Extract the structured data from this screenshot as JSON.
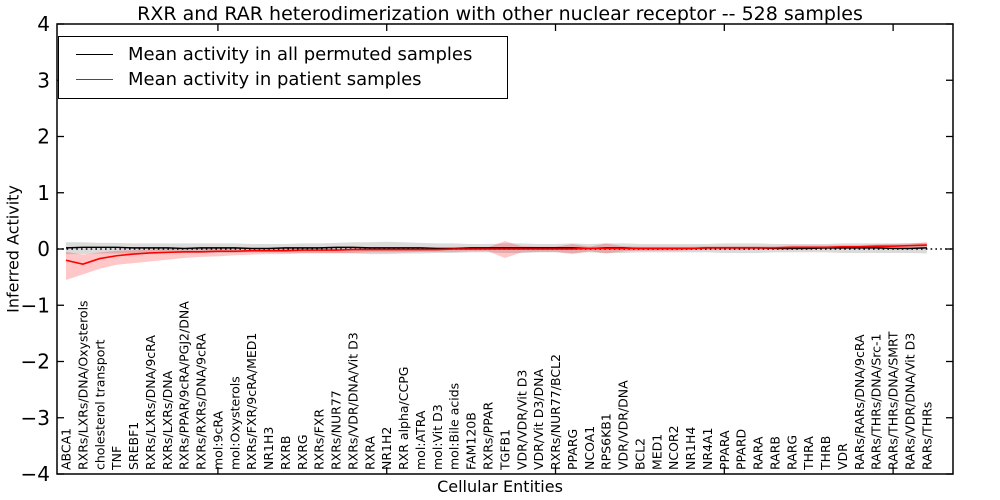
{
  "chart_data": {
    "type": "line",
    "title": "RXR and RAR heterodimerization with other nuclear receptor -- 528 samples",
    "xlabel": "Cellular Entities",
    "ylabel": "Inferred Activity",
    "ylim": [
      -4,
      4
    ],
    "yticks": [
      -4,
      -3,
      -2,
      -1,
      0,
      1,
      2,
      3,
      4
    ],
    "xticks_at": [
      10,
      20,
      30,
      40,
      50
    ],
    "grid": false,
    "zero_line": {
      "y": 0,
      "style": "dotted",
      "color": "#000000"
    },
    "legend_position": "upper-left",
    "categories": [
      "ABCA1",
      "RXRs/LXRs/DNA/Oxysterols",
      "cholesterol transport",
      "TNF",
      "SREBF1",
      "RXRs/LXRs/DNA/9cRA",
      "RXRs/LXRs/DNA",
      "RXRs/PPAR/9cRA/PGJ2/DNA",
      "RXRs/RXRs/DNA/9cRA",
      "mol:9cRA",
      "mol:Oxysterols",
      "RXRs/FXR/9cRA/MED1",
      "NR1H3",
      "RXRB",
      "RXRG",
      "RXRs/FXR",
      "RXRs/NUR77",
      "RXRs/VDR/DNA/Vit D3",
      "RXRA",
      "NR1H2",
      "RXR alpha/CCPG",
      "mol:ATRA",
      "mol:Vit D3",
      "mol:Bile acids",
      "FAM120B",
      "RXRs/PPAR",
      "TGFB1",
      "VDR/VDR/Vit D3",
      "VDR/Vit D3/DNA",
      "RXRs/NUR77/BCL2",
      "PPARG",
      "NCOA1",
      "RPS6KB1",
      "VDR/VDR/DNA",
      "BCL2",
      "MED1",
      "NCOR2",
      "NR1H4",
      "NR4A1",
      "PPARA",
      "PPARD",
      "RARA",
      "RARB",
      "RARG",
      "THRA",
      "THRB",
      "VDR",
      "RARs/RARs/DNA/9cRA",
      "RARs/THRs/DNA/Src-1",
      "RARs/THRs/DNA/SMRT",
      "RARs/VDR/DNA/Vit D3",
      "RARs/THRs"
    ],
    "series": [
      {
        "name": "Mean activity in all permuted samples",
        "color": "#000000",
        "band_color": "#000000",
        "band_opacity": 0.14,
        "values": [
          0.02,
          0.03,
          0.03,
          0.03,
          0.02,
          0.02,
          0.02,
          0.01,
          0.02,
          0.02,
          0.02,
          0.01,
          0.01,
          0.02,
          0.02,
          0.02,
          0.03,
          0.03,
          0.02,
          0.02,
          0.02,
          0.02,
          0.01,
          0.01,
          0.02,
          0.02,
          0.02,
          0.02,
          0.02,
          0.02,
          0.02,
          0.01,
          0.02,
          0.02,
          0.01,
          0.01,
          0.01,
          0.01,
          0.02,
          0.02,
          0.02,
          0.02,
          0.01,
          0.01,
          0.01,
          0.02,
          0.02,
          0.02,
          0.02,
          0.01,
          0.01,
          0.02
        ],
        "band_high": [
          0.12,
          0.12,
          0.11,
          0.11,
          0.1,
          0.1,
          0.1,
          0.1,
          0.1,
          0.1,
          0.1,
          0.09,
          0.09,
          0.09,
          0.1,
          0.1,
          0.11,
          0.12,
          0.12,
          0.13,
          0.12,
          0.11,
          0.1,
          0.1,
          0.09,
          0.09,
          0.1,
          0.1,
          0.09,
          0.09,
          0.1,
          0.09,
          0.1,
          0.1,
          0.09,
          0.09,
          0.09,
          0.09,
          0.09,
          0.1,
          0.1,
          0.1,
          0.09,
          0.09,
          0.09,
          0.09,
          0.1,
          0.1,
          0.1,
          0.1,
          0.1,
          0.11
        ],
        "band_low": [
          -0.09,
          -0.09,
          -0.08,
          -0.08,
          -0.08,
          -0.07,
          -0.07,
          -0.07,
          -0.07,
          -0.07,
          -0.07,
          -0.06,
          -0.06,
          -0.06,
          -0.07,
          -0.07,
          -0.08,
          -0.08,
          -0.09,
          -0.09,
          -0.08,
          -0.08,
          -0.07,
          -0.07,
          -0.06,
          -0.06,
          -0.07,
          -0.07,
          -0.06,
          -0.06,
          -0.07,
          -0.06,
          -0.07,
          -0.07,
          -0.06,
          -0.06,
          -0.06,
          -0.06,
          -0.06,
          -0.07,
          -0.07,
          -0.07,
          -0.06,
          -0.06,
          -0.06,
          -0.06,
          -0.07,
          -0.07,
          -0.07,
          -0.07,
          -0.07,
          -0.08
        ]
      },
      {
        "name": "Mean activity in patient samples",
        "color": "#ff0000",
        "band_color": "#ff0000",
        "band_opacity": 0.22,
        "values": [
          -0.2,
          -0.27,
          -0.17,
          -0.12,
          -0.09,
          -0.07,
          -0.06,
          -0.05,
          -0.05,
          -0.04,
          -0.04,
          -0.03,
          -0.03,
          -0.03,
          -0.02,
          -0.02,
          -0.02,
          -0.01,
          -0.01,
          -0.01,
          -0.01,
          -0.01,
          -0.01,
          0.0,
          0.0,
          0.0,
          0.0,
          0.0,
          0.0,
          0.0,
          0.0,
          0.01,
          0.01,
          0.01,
          0.01,
          0.01,
          0.01,
          0.01,
          0.02,
          0.02,
          0.02,
          0.02,
          0.02,
          0.03,
          0.03,
          0.03,
          0.04,
          0.04,
          0.05,
          0.05,
          0.06,
          0.07
        ],
        "band_high": [
          -0.05,
          -0.1,
          -0.06,
          -0.03,
          -0.02,
          -0.01,
          0.0,
          0.0,
          0.01,
          0.01,
          0.01,
          0.01,
          0.02,
          0.02,
          0.02,
          0.02,
          0.02,
          0.02,
          0.02,
          0.03,
          0.03,
          0.03,
          0.03,
          0.03,
          0.03,
          0.03,
          0.14,
          0.05,
          0.04,
          0.04,
          0.09,
          0.04,
          0.1,
          0.05,
          0.04,
          0.04,
          0.04,
          0.04,
          0.05,
          0.05,
          0.05,
          0.05,
          0.05,
          0.06,
          0.06,
          0.06,
          0.07,
          0.07,
          0.08,
          0.09,
          0.1,
          0.12
        ],
        "band_low": [
          -0.55,
          -0.45,
          -0.35,
          -0.28,
          -0.25,
          -0.22,
          -0.19,
          -0.16,
          -0.14,
          -0.13,
          -0.11,
          -0.1,
          -0.09,
          -0.09,
          -0.08,
          -0.08,
          -0.07,
          -0.07,
          -0.06,
          -0.06,
          -0.06,
          -0.05,
          -0.05,
          -0.05,
          -0.04,
          -0.04,
          -0.16,
          -0.06,
          -0.05,
          -0.05,
          -0.09,
          -0.04,
          -0.08,
          -0.04,
          -0.03,
          -0.03,
          -0.03,
          -0.02,
          -0.02,
          -0.02,
          -0.02,
          -0.01,
          -0.01,
          -0.01,
          0.0,
          0.0,
          0.0,
          0.01,
          0.01,
          0.01,
          0.02,
          0.02
        ]
      }
    ]
  }
}
